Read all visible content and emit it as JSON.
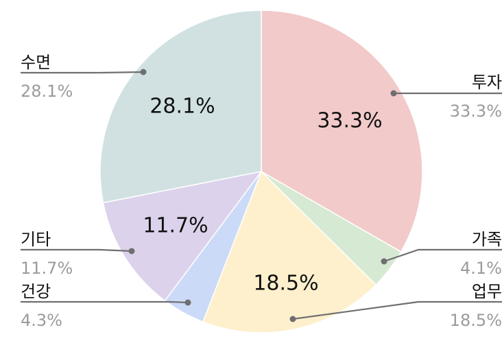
{
  "chart_data": {
    "type": "pie",
    "start_angle_deg": 0,
    "direction": "clockwise",
    "slices": [
      {
        "label": "투자",
        "value": 33.3,
        "display": "33.3%",
        "color": "#F2CACA"
      },
      {
        "label": "가족",
        "value": 4.1,
        "display": "4.1%",
        "color": "#D6E9D2"
      },
      {
        "label": "업무",
        "value": 18.5,
        "display": "18.5%",
        "color": "#FEF0CC"
      },
      {
        "label": "건강",
        "value": 4.3,
        "display": "4.3%",
        "color": "#CBDAF7"
      },
      {
        "label": "기타",
        "value": 11.7,
        "display": "11.7%",
        "color": "#DCD2EB"
      },
      {
        "label": "수면",
        "value": 28.1,
        "display": "28.1%",
        "color": "#D1E1E2"
      }
    ],
    "legend": "none"
  }
}
